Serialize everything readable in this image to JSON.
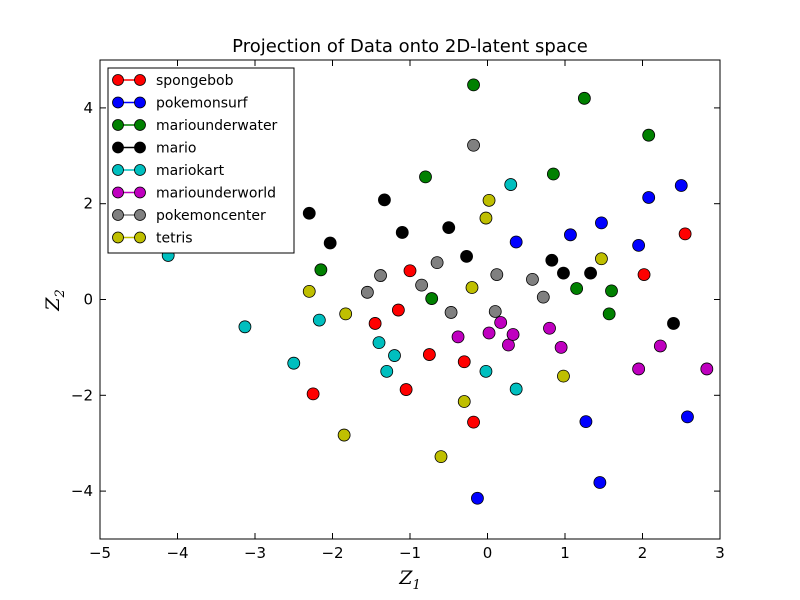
{
  "chart_data": {
    "type": "scatter",
    "title": "Projection of Data onto 2D-latent space",
    "xlabel": "Z",
    "xlabel_sub": "1",
    "ylabel": "Z",
    "ylabel_sub": "2",
    "xlim": [
      -5,
      3
    ],
    "ylim": [
      -5,
      5
    ],
    "xticks": [
      -5,
      -4,
      -3,
      -2,
      -1,
      0,
      1,
      2,
      3
    ],
    "yticks": [
      -4,
      -2,
      0,
      2,
      4
    ],
    "xtick_labels": [
      "−5",
      "−4",
      "−3",
      "−2",
      "−1",
      "0",
      "1",
      "2",
      "3"
    ],
    "ytick_labels": [
      "−4",
      "−2",
      "0",
      "2",
      "4"
    ],
    "grid": false,
    "legend_position": "upper-left",
    "series": [
      {
        "name": "spongebob",
        "color": "#ff0000",
        "x": [
          -2.25,
          -1.0,
          -1.45,
          -1.15,
          -0.75,
          -1.05,
          -0.3,
          -0.18,
          2.02,
          2.55
        ],
        "y": [
          -1.97,
          0.6,
          -0.5,
          -0.22,
          -1.15,
          -1.88,
          -1.3,
          -2.56,
          0.52,
          1.37
        ]
      },
      {
        "name": "pokemonsurf",
        "color": "#0000ff",
        "x": [
          -0.13,
          0.37,
          1.07,
          1.47,
          1.95,
          2.08,
          2.5,
          1.27,
          2.58,
          1.45
        ],
        "y": [
          -4.15,
          1.2,
          1.35,
          1.6,
          1.13,
          2.13,
          2.38,
          -2.55,
          -2.45,
          -3.82
        ]
      },
      {
        "name": "mariounderwater",
        "color": "#008000",
        "x": [
          -2.15,
          -0.18,
          -0.8,
          -0.72,
          0.85,
          1.25,
          2.08,
          1.15,
          1.6,
          1.57
        ],
        "y": [
          0.62,
          4.48,
          2.56,
          0.02,
          2.62,
          4.2,
          3.43,
          0.23,
          0.18,
          -0.3
        ]
      },
      {
        "name": "mario",
        "color": "#000000",
        "x": [
          -2.3,
          -2.03,
          -1.33,
          -1.1,
          -0.5,
          -0.27,
          0.83,
          0.98,
          1.33,
          2.4
        ],
        "y": [
          1.8,
          1.18,
          2.08,
          1.4,
          1.5,
          0.9,
          0.82,
          0.55,
          0.55,
          -0.5
        ]
      },
      {
        "name": "mariokart",
        "color": "#00bfbf",
        "x": [
          -4.12,
          -3.13,
          -2.5,
          -2.17,
          -1.4,
          -1.3,
          -1.2,
          -0.02,
          0.37,
          0.3
        ],
        "y": [
          0.92,
          -0.57,
          -1.33,
          -0.43,
          -0.9,
          -1.5,
          -1.17,
          -1.5,
          -1.87,
          2.4
        ]
      },
      {
        "name": "mariounderworld",
        "color": "#bf00bf",
        "x": [
          -0.38,
          0.02,
          0.17,
          0.27,
          0.33,
          0.8,
          0.95,
          1.95,
          2.23,
          2.83
        ],
        "y": [
          -0.78,
          -0.7,
          -0.48,
          -0.95,
          -0.73,
          -0.6,
          -1.0,
          -1.45,
          -0.97,
          -1.45
        ]
      },
      {
        "name": "pokemoncenter",
        "color": "#808080",
        "x": [
          -1.55,
          -1.38,
          -0.85,
          -0.65,
          -0.47,
          -0.18,
          0.1,
          0.12,
          0.58,
          0.72
        ],
        "y": [
          0.15,
          0.5,
          0.3,
          0.77,
          -0.27,
          3.22,
          -0.25,
          0.52,
          0.42,
          0.05
        ]
      },
      {
        "name": "tetris",
        "color": "#bfbf00",
        "x": [
          -2.3,
          -1.83,
          -1.85,
          -0.6,
          -0.3,
          -0.2,
          -0.02,
          0.02,
          0.98,
          1.47
        ],
        "y": [
          0.17,
          -0.3,
          -2.83,
          -3.28,
          -2.13,
          0.25,
          1.7,
          2.07,
          -1.6,
          0.85
        ]
      }
    ]
  }
}
